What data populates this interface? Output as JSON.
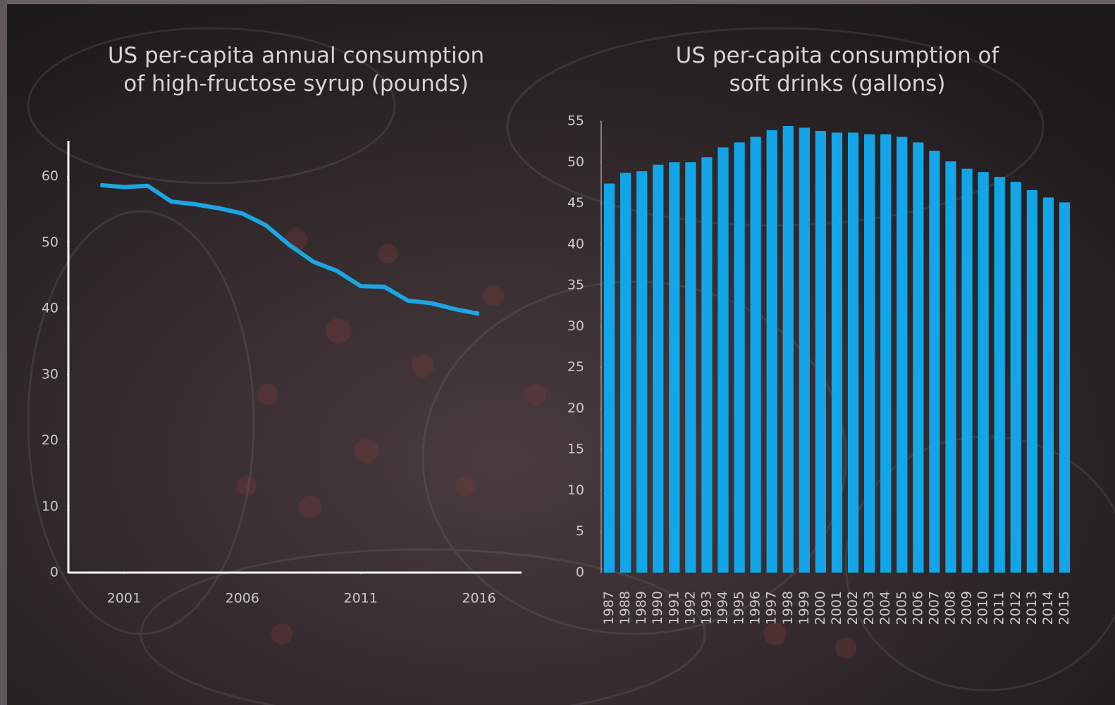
{
  "chart_data": [
    {
      "type": "line",
      "title": "US per-capita annual consumption of high-fructose syrup (pounds)",
      "x": [
        2000,
        2001,
        2002,
        2003,
        2004,
        2005,
        2006,
        2007,
        2008,
        2009,
        2010,
        2011,
        2012,
        2013,
        2014,
        2015,
        2016
      ],
      "values": [
        58.7,
        58.4,
        58.6,
        56.2,
        55.8,
        55.2,
        54.4,
        52.6,
        49.6,
        47.1,
        45.7,
        43.4,
        43.3,
        41.2,
        40.8,
        39.9,
        39.2
      ],
      "color": "#1ba6e3",
      "xlim": [
        1998.65,
        2017.8
      ],
      "xticks": [
        2001,
        2006,
        2011,
        2016
      ],
      "ylim": [
        0,
        65.4
      ],
      "yticks": [
        0,
        10,
        20,
        30,
        40,
        50,
        60
      ]
    },
    {
      "type": "bar",
      "title": "US per-capita consumption of soft drinks (gallons)",
      "categories": [
        "1987",
        "1988",
        "1989",
        "1990",
        "1991",
        "1992",
        "1993",
        "1994",
        "1995",
        "1996",
        "1997",
        "1998",
        "1999",
        "2000",
        "2001",
        "2002",
        "2003",
        "2004",
        "2005",
        "2006",
        "2007",
        "2008",
        "2009",
        "2010",
        "2011",
        "2012",
        "2013",
        "2014",
        "2015"
      ],
      "values": [
        47.4,
        48.7,
        48.9,
        49.7,
        50.0,
        50.0,
        50.6,
        51.8,
        52.4,
        53.1,
        53.9,
        54.4,
        54.2,
        53.8,
        53.6,
        53.6,
        53.4,
        53.4,
        53.1,
        52.4,
        51.4,
        50.1,
        49.2,
        48.8,
        48.2,
        47.6,
        46.6,
        45.7,
        45.1
      ],
      "color": "#12a6e8",
      "ylim": [
        0,
        55
      ],
      "yticks": [
        0,
        5,
        10,
        15,
        20,
        25,
        30,
        35,
        40,
        45,
        50,
        55
      ]
    }
  ]
}
